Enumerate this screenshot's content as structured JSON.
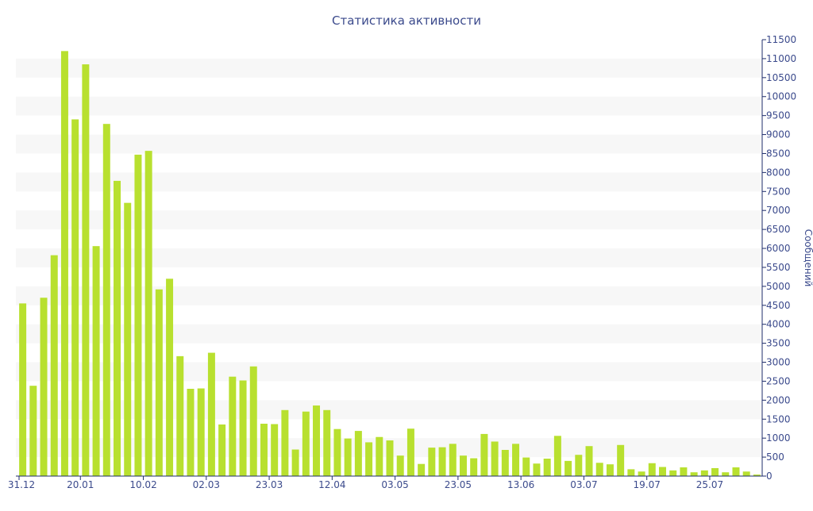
{
  "colors": {
    "bar": "#b8e02f",
    "text": "#3b4a8c",
    "axis": "#1f2d6b",
    "band": "#f7f7f7"
  },
  "chart_data": {
    "type": "bar",
    "title": "Статистика активности",
    "ylabel": "Сообщений",
    "xlabel": "",
    "ylim": [
      0,
      11500
    ],
    "y_ticks": [
      0,
      500,
      1000,
      1500,
      2000,
      2500,
      3000,
      3500,
      4000,
      4500,
      5000,
      5500,
      6000,
      6500,
      7000,
      7500,
      8000,
      8500,
      9000,
      9500,
      10000,
      10500,
      11000,
      11500
    ],
    "y_axis_position": "right",
    "grid": "alternating horizontal bands",
    "x_tick_labels": [
      "31.12",
      "20.01",
      "10.02",
      "02.03",
      "23.03",
      "12.04",
      "03.05",
      "23.05",
      "13.06",
      "03.07",
      "19.07",
      "25.07"
    ],
    "x_tick_positions": [
      0,
      6,
      12,
      18,
      24,
      30,
      36,
      42,
      48,
      54,
      60,
      66
    ],
    "values": [
      4550,
      2380,
      4700,
      5820,
      11200,
      9400,
      10850,
      6060,
      9280,
      7780,
      7200,
      8470,
      8570,
      4920,
      5200,
      3160,
      2300,
      2310,
      3250,
      1360,
      2620,
      2520,
      2890,
      1380,
      1370,
      1740,
      700,
      1700,
      1860,
      1740,
      1240,
      990,
      1190,
      890,
      1030,
      940,
      540,
      1250,
      320,
      750,
      760,
      850,
      540,
      470,
      1110,
      910,
      690,
      850,
      490,
      330,
      460,
      1060,
      400,
      560,
      790,
      350,
      310,
      820,
      180,
      120,
      340,
      240,
      150,
      230,
      100,
      150,
      210,
      100,
      230,
      120,
      40
    ]
  }
}
